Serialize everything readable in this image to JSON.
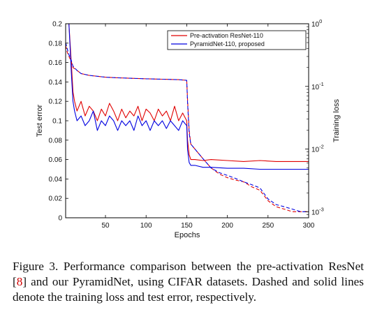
{
  "chart_data": {
    "type": "line",
    "xlabel": "Epochs",
    "ylabel_left": "Test error",
    "ylabel_right": "Training loss",
    "xlim": [
      1,
      300
    ],
    "ylim_left": [
      0,
      0.2
    ],
    "ylim_right": [
      0.0008,
      1
    ],
    "right_axis_scale": "log",
    "x_ticks": [
      "50",
      "100",
      "150",
      "200",
      "250",
      "300"
    ],
    "y_ticks_left": [
      "0",
      "0.02",
      "0.04",
      "0.06",
      "0.08",
      "0.1",
      "0.12",
      "0.14",
      "0.16",
      "0.18",
      "0.2"
    ],
    "y_ticks_right": [
      {
        "base": "10",
        "exp": "0",
        "value": 1
      },
      {
        "base": "10",
        "exp": "-1",
        "value": 0.1
      },
      {
        "base": "10",
        "exp": "-2",
        "value": 0.01
      },
      {
        "base": "10",
        "exp": "-3",
        "value": 0.001
      }
    ],
    "grid": false,
    "legend_position": "top-right",
    "series": [
      {
        "name": "Pre-activation ResNet-110",
        "color": "#e00000",
        "metric": "test error",
        "style": "solid",
        "x": [
          3,
          5,
          8,
          10,
          12,
          15,
          20,
          25,
          30,
          35,
          40,
          45,
          50,
          55,
          60,
          65,
          70,
          75,
          80,
          85,
          90,
          95,
          100,
          105,
          110,
          115,
          120,
          125,
          130,
          135,
          140,
          145,
          150,
          151,
          153,
          155,
          160,
          170,
          180,
          200,
          220,
          240,
          260,
          280,
          300
        ],
        "y": [
          0.2,
          0.2,
          0.16,
          0.13,
          0.12,
          0.11,
          0.12,
          0.105,
          0.115,
          0.11,
          0.1,
          0.112,
          0.105,
          0.118,
          0.11,
          0.1,
          0.112,
          0.103,
          0.11,
          0.105,
          0.115,
          0.1,
          0.112,
          0.108,
          0.1,
          0.112,
          0.105,
          0.11,
          0.1,
          0.115,
          0.1,
          0.108,
          0.1,
          0.08,
          0.065,
          0.06,
          0.06,
          0.059,
          0.06,
          0.059,
          0.058,
          0.059,
          0.058,
          0.058,
          0.058
        ]
      },
      {
        "name": "PyramidNet-110, proposed",
        "color": "#0000e0",
        "metric": "test error",
        "style": "solid",
        "x": [
          3,
          5,
          8,
          10,
          12,
          15,
          20,
          25,
          30,
          35,
          40,
          45,
          50,
          55,
          60,
          65,
          70,
          75,
          80,
          85,
          90,
          95,
          100,
          105,
          110,
          115,
          120,
          125,
          130,
          135,
          140,
          145,
          150,
          151,
          153,
          155,
          160,
          170,
          180,
          200,
          220,
          240,
          260,
          280,
          300
        ],
        "y": [
          0.2,
          0.2,
          0.15,
          0.12,
          0.11,
          0.1,
          0.105,
          0.095,
          0.1,
          0.11,
          0.09,
          0.1,
          0.095,
          0.105,
          0.1,
          0.09,
          0.1,
          0.095,
          0.1,
          0.09,
          0.105,
          0.095,
          0.1,
          0.09,
          0.1,
          0.095,
          0.1,
          0.092,
          0.1,
          0.095,
          0.09,
          0.1,
          0.095,
          0.07,
          0.057,
          0.054,
          0.054,
          0.052,
          0.052,
          0.051,
          0.051,
          0.05,
          0.05,
          0.05,
          0.05
        ]
      },
      {
        "name": "Pre-activation ResNet-110",
        "color": "#e00000",
        "metric": "training loss",
        "style": "dashed",
        "x": [
          1,
          3,
          5,
          8,
          10,
          15,
          20,
          30,
          40,
          50,
          60,
          80,
          100,
          120,
          140,
          150,
          151,
          153,
          155,
          160,
          170,
          180,
          190,
          200,
          210,
          220,
          230,
          240,
          250,
          260,
          270,
          280,
          290,
          300
        ],
        "y": [
          0.45,
          0.35,
          0.3,
          0.25,
          0.2,
          0.18,
          0.16,
          0.15,
          0.145,
          0.14,
          0.138,
          0.135,
          0.132,
          0.13,
          0.128,
          0.125,
          0.06,
          0.02,
          0.012,
          0.01,
          0.007,
          0.005,
          0.004,
          0.0035,
          0.0032,
          0.003,
          0.0025,
          0.0022,
          0.0015,
          0.0012,
          0.0011,
          0.001,
          0.001,
          0.001
        ]
      },
      {
        "name": "PyramidNet-110, proposed",
        "color": "#0000e0",
        "metric": "training loss",
        "style": "dashed",
        "x": [
          1,
          3,
          5,
          8,
          10,
          15,
          20,
          30,
          40,
          50,
          60,
          80,
          100,
          120,
          140,
          150,
          151,
          153,
          155,
          160,
          170,
          180,
          190,
          200,
          210,
          220,
          230,
          240,
          250,
          260,
          270,
          280,
          290,
          300
        ],
        "y": [
          0.5,
          0.4,
          0.32,
          0.26,
          0.21,
          0.18,
          0.16,
          0.15,
          0.145,
          0.14,
          0.138,
          0.135,
          0.132,
          0.13,
          0.128,
          0.125,
          0.055,
          0.018,
          0.012,
          0.01,
          0.007,
          0.005,
          0.0042,
          0.0038,
          0.0034,
          0.003,
          0.0027,
          0.0024,
          0.0016,
          0.0013,
          0.0012,
          0.0011,
          0.001,
          0.001
        ]
      }
    ]
  },
  "caption": {
    "before_ref": "Figure 3. Performance comparison between the pre-activation ResNet [",
    "ref": "8",
    "after_ref": "] and our PyramidNet, using CIFAR datasets. Dashed and solid lines denote the training loss and test error, respectively."
  }
}
